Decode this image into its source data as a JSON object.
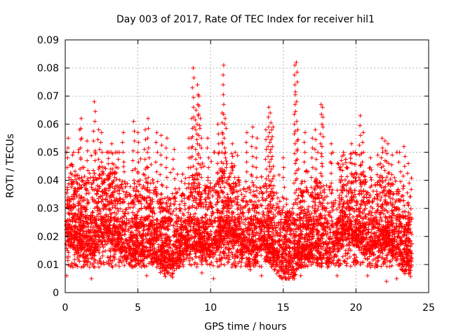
{
  "chart_data": {
    "type": "scatter",
    "title": "Day 003 of 2017, Rate Of TEC Index for receiver hil1",
    "xlabel": "GPS time / hours",
    "ylabel": "ROTI / TECUs",
    "xlim": [
      0,
      25
    ],
    "ylim": [
      0,
      0.09
    ],
    "xticks": [
      "0",
      "5",
      "10",
      "15",
      "20",
      "25"
    ],
    "yticks": [
      "0",
      "0.01",
      "0.02",
      "0.03",
      "0.04",
      "0.05",
      "0.06",
      "0.07",
      "0.08",
      "0.09"
    ],
    "grid": true,
    "marker": "+",
    "color": "#ff0000",
    "series": [
      {
        "points": [
          [
            0.2,
            0.055
          ],
          [
            0.5,
            0.049
          ],
          [
            1.0,
            0.058
          ],
          [
            1.1,
            0.062
          ],
          [
            1.5,
            0.054
          ],
          [
            2.0,
            0.068
          ],
          [
            2.3,
            0.058
          ],
          [
            2.5,
            0.057
          ],
          [
            3.2,
            0.053
          ],
          [
            4.0,
            0.057
          ],
          [
            4.7,
            0.061
          ],
          [
            5.0,
            0.057
          ],
          [
            5.5,
            0.058
          ],
          [
            5.7,
            0.062
          ],
          [
            6.3,
            0.057
          ],
          [
            6.6,
            0.056
          ],
          [
            7.0,
            0.055
          ],
          [
            7.5,
            0.051
          ],
          [
            8.5,
            0.055
          ],
          [
            8.7,
            0.062
          ],
          [
            8.8,
            0.08
          ],
          [
            9.0,
            0.065
          ],
          [
            9.1,
            0.074
          ],
          [
            9.2,
            0.07
          ],
          [
            9.3,
            0.062
          ],
          [
            9.8,
            0.055
          ],
          [
            10.5,
            0.06
          ],
          [
            10.8,
            0.064
          ],
          [
            10.9,
            0.081
          ],
          [
            11.0,
            0.062
          ],
          [
            11.5,
            0.053
          ],
          [
            12.5,
            0.057
          ],
          [
            12.9,
            0.059
          ],
          [
            13.2,
            0.055
          ],
          [
            13.8,
            0.058
          ],
          [
            14.0,
            0.066
          ],
          [
            14.1,
            0.064
          ],
          [
            14.2,
            0.058
          ],
          [
            14.3,
            0.059
          ],
          [
            15.0,
            0.048
          ],
          [
            15.8,
            0.081
          ],
          [
            15.9,
            0.082
          ],
          [
            16.0,
            0.058
          ],
          [
            16.5,
            0.057
          ],
          [
            17.0,
            0.055
          ],
          [
            17.2,
            0.058
          ],
          [
            17.6,
            0.067
          ],
          [
            17.7,
            0.066
          ],
          [
            18.3,
            0.053
          ],
          [
            19.0,
            0.047
          ],
          [
            19.7,
            0.053
          ],
          [
            20.3,
            0.063
          ],
          [
            20.5,
            0.057
          ],
          [
            21.0,
            0.048
          ],
          [
            21.5,
            0.049
          ],
          [
            21.8,
            0.055
          ],
          [
            22.0,
            0.054
          ],
          [
            22.2,
            0.053
          ],
          [
            22.5,
            0.049
          ],
          [
            23.0,
            0.05
          ],
          [
            23.3,
            0.052
          ],
          [
            23.6,
            0.046
          ],
          [
            0.1,
            0.006
          ],
          [
            1.8,
            0.005
          ],
          [
            5.6,
            0.006
          ],
          [
            9.4,
            0.007
          ],
          [
            10.2,
            0.005
          ],
          [
            13.5,
            0.006
          ],
          [
            16.2,
            0.006
          ],
          [
            18.7,
            0.006
          ],
          [
            20.8,
            0.006
          ],
          [
            22.1,
            0.004
          ],
          [
            22.8,
            0.005
          ],
          [
            23.7,
            0.007
          ]
        ]
      }
    ]
  }
}
